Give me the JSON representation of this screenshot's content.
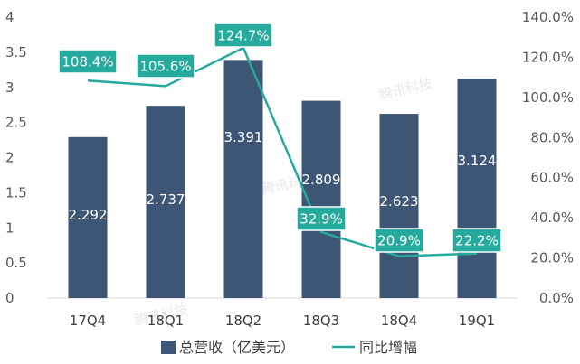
{
  "chart_data": {
    "type": "bar+line",
    "categories": [
      "17Q4",
      "18Q1",
      "18Q2",
      "18Q3",
      "18Q4",
      "19Q1"
    ],
    "series": [
      {
        "name": "总营收（亿美元）",
        "type": "bar",
        "axis": "left",
        "values": [
          2.292,
          2.737,
          3.391,
          2.809,
          2.623,
          3.124
        ],
        "labels": [
          "2.292",
          "2.737",
          "3.391",
          "2.809",
          "2.623",
          "3.124"
        ],
        "color": "#3d5675"
      },
      {
        "name": "同比增幅",
        "type": "line",
        "axis": "right",
        "values": [
          108.4,
          105.6,
          124.7,
          32.9,
          20.9,
          22.2
        ],
        "labels": [
          "108.4%",
          "105.6%",
          "124.7%",
          "32.9%",
          "20.9%",
          "22.2%"
        ],
        "color": "#26aa9d"
      }
    ],
    "y_left": {
      "ylim": [
        0,
        4
      ],
      "ticks": [
        "0",
        "0.5",
        "1",
        "1.5",
        "2",
        "2.5",
        "3",
        "3.5",
        "4"
      ]
    },
    "y_right": {
      "ylim": [
        0,
        140
      ],
      "ticks": [
        "0.0%",
        "20.0%",
        "40.0%",
        "60.0%",
        "80.0%",
        "100.0%",
        "120.0%",
        "140.0%"
      ]
    },
    "legend_position": "bottom",
    "grid": false
  },
  "watermark": "腾讯科技"
}
